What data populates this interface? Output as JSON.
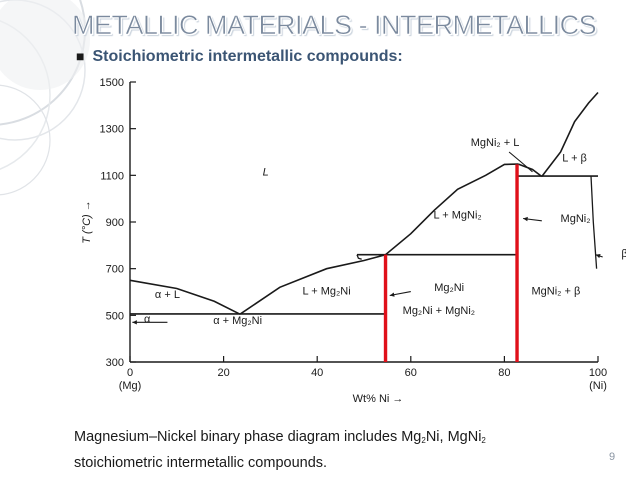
{
  "slide": {
    "title": "METALLIC MATERIALS - INTERMETALLICS",
    "bullet": "Stoichiometric intermetallic compounds:",
    "caption": {
      "part1": "Magnesium–Nickel binary phase diagram includes Mg",
      "sub1": "2",
      "part2": "Ni, MgNi",
      "sub2": "2",
      "line2": "stoichiometric intermetallic compounds."
    },
    "page_number": "9"
  },
  "colors": {
    "title": "#7b8a9e",
    "bullet": "#3b5574",
    "red_line": "#e0101a",
    "phase_line": "#1a1a1a"
  },
  "chart_data": {
    "type": "phase-diagram",
    "system": "Mg–Ni",
    "xlabel": "Wt% Ni",
    "ylabel": "T (°C)",
    "xlim": [
      0,
      100
    ],
    "ylim": [
      300,
      1500
    ],
    "x_ticks": [
      0,
      20,
      40,
      60,
      80,
      100
    ],
    "y_ticks": [
      300,
      500,
      700,
      900,
      1100,
      1300,
      1500
    ],
    "x_end_labels": {
      "left": "(Mg)",
      "right": "(Ni)"
    },
    "liquidus": [
      {
        "name": "mg-side-liquidus",
        "points": [
          [
            0,
            650
          ],
          [
            10,
            615
          ],
          [
            18,
            560
          ],
          [
            23.5,
            505
          ]
        ]
      },
      {
        "name": "mg2ni-left-liquidus",
        "points": [
          [
            23.5,
            505
          ],
          [
            32,
            620
          ],
          [
            42,
            700
          ],
          [
            50,
            735
          ],
          [
            54.6,
            760
          ]
        ]
      },
      {
        "name": "mg2ni-mgni2-liquidus",
        "points": [
          [
            54.6,
            760
          ],
          [
            60,
            850
          ],
          [
            65,
            950
          ],
          [
            70,
            1040
          ],
          [
            76,
            1100
          ],
          [
            80,
            1147
          ],
          [
            83,
            1148
          ]
        ]
      },
      {
        "name": "mgni2-right-liquidus",
        "points": [
          [
            83,
            1148
          ],
          [
            86,
            1125
          ],
          [
            88,
            1095
          ]
        ]
      },
      {
        "name": "ni-side-liquidus",
        "points": [
          [
            88,
            1095
          ],
          [
            92,
            1200
          ],
          [
            95,
            1330
          ],
          [
            98,
            1410
          ],
          [
            100,
            1455
          ]
        ]
      }
    ],
    "eutectics": [
      {
        "name": "eutectic-mg-mg2ni",
        "temp": 506,
        "x_range": [
          0,
          54.6
        ]
      },
      {
        "name": "peritectic-mg2ni",
        "temp": 760,
        "x_range": [
          48.5,
          82.7
        ]
      },
      {
        "name": "eutectic-mgni2-ni",
        "temp": 1097,
        "x_range": [
          82.7,
          100
        ]
      }
    ],
    "solidus_curves": [
      {
        "name": "mg2ni-left-solidus",
        "points": [
          [
            48.5,
            760
          ],
          [
            48.8,
            745
          ],
          [
            49.5,
            740
          ]
        ]
      },
      {
        "name": "ni-solid-solution",
        "points": [
          [
            98.5,
            1097
          ],
          [
            99,
            900
          ],
          [
            99.7,
            700
          ]
        ]
      }
    ],
    "compounds": [
      {
        "name": "Mg2Ni",
        "wt_ni": 54.6,
        "melting_temp": 760,
        "color": "#e0101a"
      },
      {
        "name": "MgNi2",
        "wt_ni": 82.7,
        "melting_temp": 1147,
        "color": "#e0101a"
      }
    ],
    "region_labels": [
      {
        "name": "liquid",
        "text": "L",
        "x": 29,
        "y": 1100
      },
      {
        "name": "alpha-plus-liquid",
        "text": "α + L",
        "x": 8,
        "y": 575
      },
      {
        "name": "liquid-plus-mg2ni",
        "text": "L + Mg₂Ni",
        "x": 42,
        "y": 590
      },
      {
        "name": "liquid-plus-mgni2",
        "text": "L + MgNi₂",
        "x": 70,
        "y": 915
      },
      {
        "name": "mgni2-plus-liquid-top",
        "text": "MgNi₂ + L",
        "x": 78,
        "y": 1225
      },
      {
        "name": "liquid-plus-beta",
        "text": "L + β",
        "x": 95,
        "y": 1160
      },
      {
        "name": "alpha-plus-mg2ni",
        "text": "α + Mg₂Ni",
        "x": 23,
        "y": 462
      },
      {
        "name": "mg2ni-plus-mgni2",
        "text": "Mg₂Ni + MgNi₂",
        "x": 66,
        "y": 505
      },
      {
        "name": "mgni2-plus-beta",
        "text": "MgNi₂ + β",
        "x": 91,
        "y": 590
      }
    ],
    "arrow_labels": [
      {
        "name": "alpha-arrow",
        "text": "α",
        "x": 3,
        "y": 470
      },
      {
        "name": "mg2ni-arrow",
        "text": "Mg₂Ni",
        "x": 65,
        "y": 605
      },
      {
        "name": "mgni2-arrow",
        "text": "MgNi₂",
        "x": 92,
        "y": 900
      },
      {
        "name": "beta-arrow",
        "text": "β",
        "x": 105,
        "y": 750
      }
    ]
  }
}
